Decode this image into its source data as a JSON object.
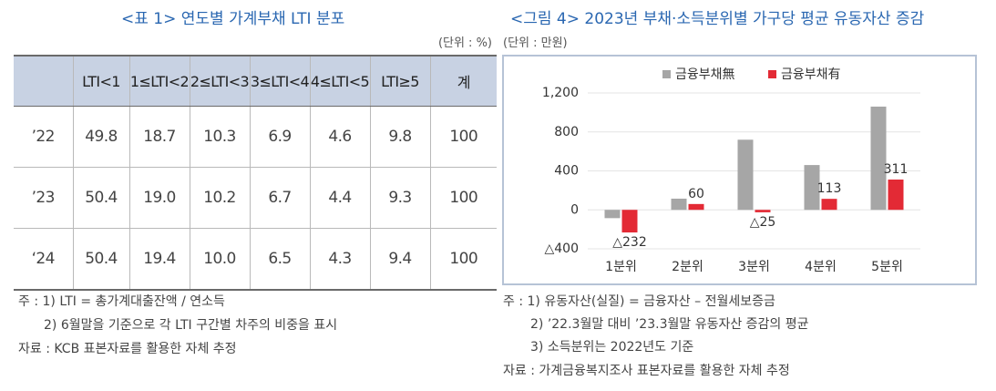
{
  "table_figure": {
    "title": "<표 1> 연도별 가계부채 LTI 분포",
    "unit": "(단위 : %)",
    "columns": [
      "LTI<1",
      "1≤LTI<2",
      "2≤LTI<3",
      "3≤LTI<4",
      "4≤LTI<5",
      "LTI≥5",
      "계"
    ],
    "rows": [
      {
        "label": "’22",
        "cells": [
          "49.8",
          "18.7",
          "10.3",
          "6.9",
          "4.6",
          "9.8",
          "100"
        ]
      },
      {
        "label": "’23",
        "cells": [
          "50.4",
          "19.0",
          "10.2",
          "6.7",
          "4.4",
          "9.3",
          "100"
        ]
      },
      {
        "label": "‘24",
        "cells": [
          "50.4",
          "19.4",
          "10.0",
          "6.5",
          "4.3",
          "9.4",
          "100"
        ]
      }
    ],
    "notes": [
      "주 : 1) LTI = 총가계대출잔액 / 연소득",
      "2) 6월말을 기준으로 각 LTI 구간별 차주의 비중을 표시",
      "자료 : KCB 표본자료를 활용한 자체 추정"
    ]
  },
  "chart_data": {
    "type": "bar",
    "title": "<그림 4> 2023년 부채·소득분위별 가구당 평균 유동자산 증감",
    "unit": "(단위 : 만원)",
    "categories": [
      "1분위",
      "2분위",
      "3분위",
      "4분위",
      "5분위"
    ],
    "series": [
      {
        "name": "금융부채無",
        "color": "#a6a6a6",
        "values": [
          -85,
          115,
          720,
          460,
          1060
        ]
      },
      {
        "name": "금융부채有",
        "color": "#e32a35",
        "values": [
          -232,
          60,
          -25,
          113,
          311
        ],
        "value_labels": [
          "△232",
          "60",
          "△25",
          "113",
          "311"
        ]
      }
    ],
    "ylim": [
      -400,
      1200
    ],
    "yticks": [
      {
        "value": -400,
        "label": "△400"
      },
      0,
      400,
      800,
      {
        "value": 1200,
        "label": "1,200"
      }
    ],
    "grid": true,
    "notes": [
      "주 : 1) 유동자산(실질) = 금융자산 – 전월세보증금",
      "2) ’22.3월말 대비 ’23.3월말 유동자산 증감의 평균",
      "3) 소득분위는 2022년도 기준",
      "자료 : 가계금융복지조사 표본자료를 활용한 자체 추정"
    ]
  }
}
